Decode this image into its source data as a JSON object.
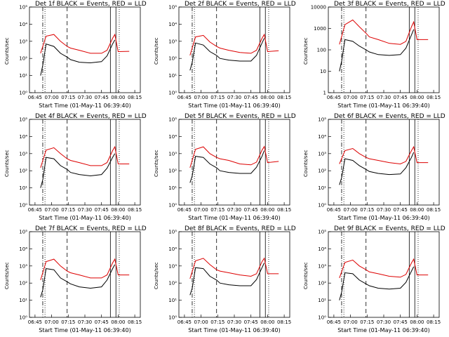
{
  "colors": {
    "events": "#000000",
    "lld": "#dd0000",
    "background": "#ffffff"
  },
  "chart_data": [
    {
      "type": "line",
      "title": "Det 1f BLACK = Events, RED = LLD",
      "xlabel": "Start Time (01-May-11 06:39:40)",
      "ylabel": "Counts/sec",
      "y_scale": "log",
      "ylim": [
        1,
        100000
      ],
      "y_ticks": [
        "10⁰",
        "10¹",
        "10²",
        "10³",
        "10⁴",
        "10⁵"
      ],
      "x_ticks": [
        "06:45",
        "07:00",
        "07:15",
        "07:30",
        "07:45",
        "08:00",
        "08:15"
      ],
      "series": [
        {
          "name": "BLACK = Events",
          "x": [
            "06:50",
            "06:52",
            "06:55",
            "07:02",
            "07:08",
            "07:14",
            "07:17",
            "07:25",
            "07:35",
            "07:45",
            "07:50",
            "07:55",
            "07:57"
          ],
          "y": [
            10,
            40,
            700,
            500,
            200,
            120,
            85,
            60,
            55,
            65,
            140,
            700,
            1200
          ]
        },
        {
          "name": "RED = LLD",
          "x": [
            "06:50",
            "06:55",
            "07:02",
            "07:08",
            "07:14",
            "07:17",
            "07:25",
            "07:35",
            "07:45",
            "07:50",
            "07:55",
            "07:57",
            "08:00",
            "08:10"
          ],
          "y": [
            200,
            2000,
            2500,
            1000,
            500,
            400,
            300,
            200,
            200,
            300,
            1500,
            2500,
            250,
            260
          ]
        }
      ]
    },
    {
      "type": "line",
      "title": "Det 2f BLACK = Events, RED = LLD",
      "xlabel": "Start Time (01-May-11 06:39:40)",
      "ylabel": "Counts/sec",
      "y_scale": "log",
      "ylim": [
        1,
        100000
      ],
      "y_ticks": [
        "10⁰",
        "10¹",
        "10²",
        "10³",
        "10⁴",
        "10⁵"
      ],
      "x_ticks": [
        "06:45",
        "07:00",
        "07:15",
        "07:30",
        "07:45",
        "08:00",
        "08:15"
      ],
      "series": [
        {
          "name": "BLACK = Events",
          "x": [
            "06:50",
            "06:52",
            "06:55",
            "07:02",
            "07:08",
            "07:14",
            "07:17",
            "07:25",
            "07:35",
            "07:45",
            "07:50",
            "07:55",
            "07:57"
          ],
          "y": [
            20,
            60,
            800,
            600,
            250,
            150,
            100,
            80,
            70,
            70,
            150,
            800,
            1500
          ]
        },
        {
          "name": "RED = LLD",
          "x": [
            "06:50",
            "06:55",
            "07:02",
            "07:08",
            "07:14",
            "07:17",
            "07:25",
            "07:35",
            "07:45",
            "07:50",
            "07:55",
            "07:57",
            "08:00",
            "08:10"
          ],
          "y": [
            150,
            1800,
            2200,
            900,
            500,
            400,
            300,
            220,
            200,
            300,
            1500,
            2500,
            250,
            280
          ]
        }
      ]
    },
    {
      "type": "line",
      "title": "Det 3f BLACK = Events, RED = LLD",
      "xlabel": "Start Time (01-May-11 06:39:40)",
      "ylabel": "Counts/sec",
      "y_scale": "log",
      "ylim": [
        1,
        10000
      ],
      "y_ticks": [
        "1",
        "10",
        "100",
        "1000",
        "10000"
      ],
      "x_ticks": [
        "06:45",
        "07:00",
        "07:15",
        "07:30",
        "07:45",
        "08:00",
        "08:15"
      ],
      "series": [
        {
          "name": "BLACK = Events",
          "x": [
            "06:50",
            "06:52",
            "06:55",
            "07:02",
            "07:08",
            "07:14",
            "07:17",
            "07:25",
            "07:35",
            "07:45",
            "07:50",
            "07:55",
            "07:57"
          ],
          "y": [
            10,
            30,
            300,
            250,
            150,
            100,
            80,
            60,
            55,
            60,
            120,
            500,
            900
          ]
        },
        {
          "name": "RED = LLD",
          "x": [
            "06:50",
            "06:55",
            "07:02",
            "07:08",
            "07:14",
            "07:17",
            "07:25",
            "07:35",
            "07:45",
            "07:50",
            "07:55",
            "07:57",
            "08:00",
            "08:10"
          ],
          "y": [
            180,
            1500,
            2500,
            1200,
            600,
            400,
            300,
            200,
            180,
            250,
            1200,
            2000,
            300,
            300
          ]
        }
      ]
    },
    {
      "type": "line",
      "title": "Det 4f BLACK = Events, RED = LLD",
      "xlabel": "Start Time (01-May-11 06:39:40)",
      "ylabel": "Counts/sec",
      "y_scale": "log",
      "ylim": [
        1,
        100000
      ],
      "y_ticks": [
        "10⁰",
        "10¹",
        "10²",
        "10³",
        "10⁴",
        "10⁵"
      ],
      "x_ticks": [
        "06:45",
        "07:00",
        "07:15",
        "07:30",
        "07:45",
        "08:00",
        "08:15"
      ],
      "series": [
        {
          "name": "BLACK = Events",
          "x": [
            "06:50",
            "06:52",
            "06:55",
            "07:02",
            "07:08",
            "07:14",
            "07:17",
            "07:25",
            "07:35",
            "07:45",
            "07:50",
            "07:55",
            "07:57"
          ],
          "y": [
            10,
            30,
            600,
            500,
            200,
            120,
            80,
            60,
            50,
            60,
            140,
            600,
            1000
          ]
        },
        {
          "name": "RED = LLD",
          "x": [
            "06:50",
            "06:55",
            "07:02",
            "07:08",
            "07:14",
            "07:17",
            "07:25",
            "07:35",
            "07:45",
            "07:50",
            "07:55",
            "07:57",
            "08:00",
            "08:10"
          ],
          "y": [
            150,
            1600,
            2200,
            1000,
            500,
            400,
            300,
            200,
            200,
            300,
            1500,
            2500,
            250,
            250
          ]
        }
      ]
    },
    {
      "type": "line",
      "title": "Det 5f BLACK = Events, RED = LLD",
      "xlabel": "Start Time (01-May-11 06:39:40)",
      "ylabel": "Counts/sec",
      "y_scale": "log",
      "ylim": [
        1,
        100000
      ],
      "y_ticks": [
        "10⁰",
        "10¹",
        "10²",
        "10³",
        "10⁴",
        "10⁵"
      ],
      "x_ticks": [
        "06:45",
        "07:00",
        "07:15",
        "07:30",
        "07:45",
        "08:00",
        "08:15"
      ],
      "series": [
        {
          "name": "BLACK = Events",
          "x": [
            "06:50",
            "06:52",
            "06:55",
            "07:02",
            "07:08",
            "07:14",
            "07:17",
            "07:25",
            "07:35",
            "07:45",
            "07:50",
            "07:55",
            "07:57"
          ],
          "y": [
            20,
            50,
            700,
            600,
            250,
            150,
            100,
            80,
            70,
            70,
            160,
            700,
            1500
          ]
        },
        {
          "name": "RED = LLD",
          "x": [
            "06:50",
            "06:55",
            "07:02",
            "07:08",
            "07:14",
            "07:17",
            "07:25",
            "07:35",
            "07:45",
            "07:50",
            "07:55",
            "07:57",
            "08:00",
            "08:10"
          ],
          "y": [
            150,
            1800,
            2500,
            1000,
            600,
            500,
            400,
            250,
            220,
            320,
            1600,
            2600,
            300,
            350
          ]
        }
      ]
    },
    {
      "type": "line",
      "title": "Det 6f BLACK = Events, RED = LLD",
      "xlabel": "Start Time (01-May-11 06:39:40)",
      "ylabel": "Counts/sec",
      "y_scale": "log",
      "ylim": [
        1,
        100000
      ],
      "y_ticks": [
        "10⁰",
        "10¹",
        "10²",
        "10³",
        "10⁴",
        "10⁵"
      ],
      "x_ticks": [
        "06:45",
        "07:00",
        "07:15",
        "07:30",
        "07:45",
        "08:00",
        "08:15"
      ],
      "series": [
        {
          "name": "BLACK = Events",
          "x": [
            "06:50",
            "06:52",
            "06:55",
            "07:02",
            "07:08",
            "07:14",
            "07:17",
            "07:25",
            "07:35",
            "07:45",
            "07:50",
            "07:55",
            "07:57"
          ],
          "y": [
            15,
            40,
            500,
            400,
            200,
            120,
            90,
            70,
            60,
            65,
            150,
            600,
            1200
          ]
        },
        {
          "name": "RED = LLD",
          "x": [
            "06:50",
            "06:55",
            "07:02",
            "07:08",
            "07:14",
            "07:17",
            "07:25",
            "07:35",
            "07:45",
            "07:50",
            "07:55",
            "07:57",
            "08:00",
            "08:10"
          ],
          "y": [
            250,
            1500,
            2000,
            1000,
            600,
            500,
            400,
            300,
            250,
            350,
            1500,
            2500,
            300,
            300
          ]
        }
      ]
    },
    {
      "type": "line",
      "title": "Det 7f BLACK = Events, RED = LLD",
      "xlabel": "Start Time (01-May-11 06:39:40)",
      "ylabel": "Counts/sec",
      "y_scale": "log",
      "ylim": [
        1,
        100000
      ],
      "y_ticks": [
        "10⁰",
        "10¹",
        "10²",
        "10³",
        "10⁴",
        "10⁵"
      ],
      "x_ticks": [
        "06:45",
        "07:00",
        "07:15",
        "07:30",
        "07:45",
        "08:00",
        "08:15"
      ],
      "series": [
        {
          "name": "BLACK = Events",
          "x": [
            "06:50",
            "06:52",
            "06:55",
            "07:02",
            "07:08",
            "07:14",
            "07:17",
            "07:25",
            "07:35",
            "07:45",
            "07:50",
            "07:55",
            "07:57"
          ],
          "y": [
            15,
            40,
            700,
            600,
            200,
            120,
            90,
            60,
            50,
            60,
            150,
            700,
            1200
          ]
        },
        {
          "name": "RED = LLD",
          "x": [
            "06:50",
            "06:55",
            "07:02",
            "07:08",
            "07:14",
            "07:17",
            "07:25",
            "07:35",
            "07:45",
            "07:50",
            "07:55",
            "07:57",
            "08:00",
            "08:10"
          ],
          "y": [
            150,
            1800,
            2500,
            1000,
            500,
            400,
            300,
            200,
            200,
            300,
            1500,
            2500,
            300,
            300
          ]
        }
      ]
    },
    {
      "type": "line",
      "title": "Det 8f BLACK = Events, RED = LLD",
      "xlabel": "Start Time (01-May-11 06:39:40)",
      "ylabel": "Counts/sec",
      "y_scale": "log",
      "ylim": [
        1,
        100000
      ],
      "y_ticks": [
        "10⁰",
        "10¹",
        "10²",
        "10³",
        "10⁴",
        "10⁵"
      ],
      "x_ticks": [
        "06:45",
        "07:00",
        "07:15",
        "07:30",
        "07:45",
        "08:00",
        "08:15"
      ],
      "series": [
        {
          "name": "BLACK = Events",
          "x": [
            "06:50",
            "06:52",
            "06:55",
            "07:02",
            "07:08",
            "07:14",
            "07:17",
            "07:25",
            "07:35",
            "07:45",
            "07:50",
            "07:55",
            "07:57"
          ],
          "y": [
            20,
            50,
            800,
            700,
            250,
            150,
            100,
            80,
            70,
            70,
            160,
            800,
            1500
          ]
        },
        {
          "name": "RED = LLD",
          "x": [
            "06:50",
            "06:55",
            "07:02",
            "07:08",
            "07:14",
            "07:17",
            "07:25",
            "07:35",
            "07:45",
            "07:50",
            "07:55",
            "07:57",
            "08:00",
            "08:10"
          ],
          "y": [
            180,
            2000,
            2800,
            1200,
            600,
            500,
            400,
            300,
            250,
            350,
            1800,
            2800,
            350,
            350
          ]
        }
      ]
    },
    {
      "type": "line",
      "title": "Det 9f BLACK = Events, RED = LLD",
      "xlabel": "Start Time (01-May-11 06:39:40)",
      "ylabel": "Counts/sec",
      "y_scale": "log",
      "ylim": [
        1,
        100000
      ],
      "y_ticks": [
        "10⁰",
        "10¹",
        "10²",
        "10³",
        "10⁴",
        "10⁵"
      ],
      "x_ticks": [
        "06:45",
        "07:00",
        "07:15",
        "07:30",
        "07:45",
        "08:00",
        "08:15"
      ],
      "series": [
        {
          "name": "BLACK = Events",
          "x": [
            "06:50",
            "06:52",
            "06:55",
            "07:02",
            "07:08",
            "07:14",
            "07:17",
            "07:25",
            "07:35",
            "07:45",
            "07:50",
            "07:55",
            "07:57"
          ],
          "y": [
            10,
            30,
            400,
            350,
            150,
            90,
            70,
            50,
            45,
            50,
            110,
            500,
            900
          ]
        },
        {
          "name": "RED = LLD",
          "x": [
            "06:50",
            "06:55",
            "07:02",
            "07:08",
            "07:14",
            "07:17",
            "07:25",
            "07:35",
            "07:45",
            "07:50",
            "07:55",
            "07:57",
            "08:00",
            "08:10"
          ],
          "y": [
            200,
            1600,
            2200,
            1000,
            600,
            450,
            350,
            250,
            220,
            320,
            1500,
            2500,
            300,
            300
          ]
        }
      ]
    }
  ]
}
